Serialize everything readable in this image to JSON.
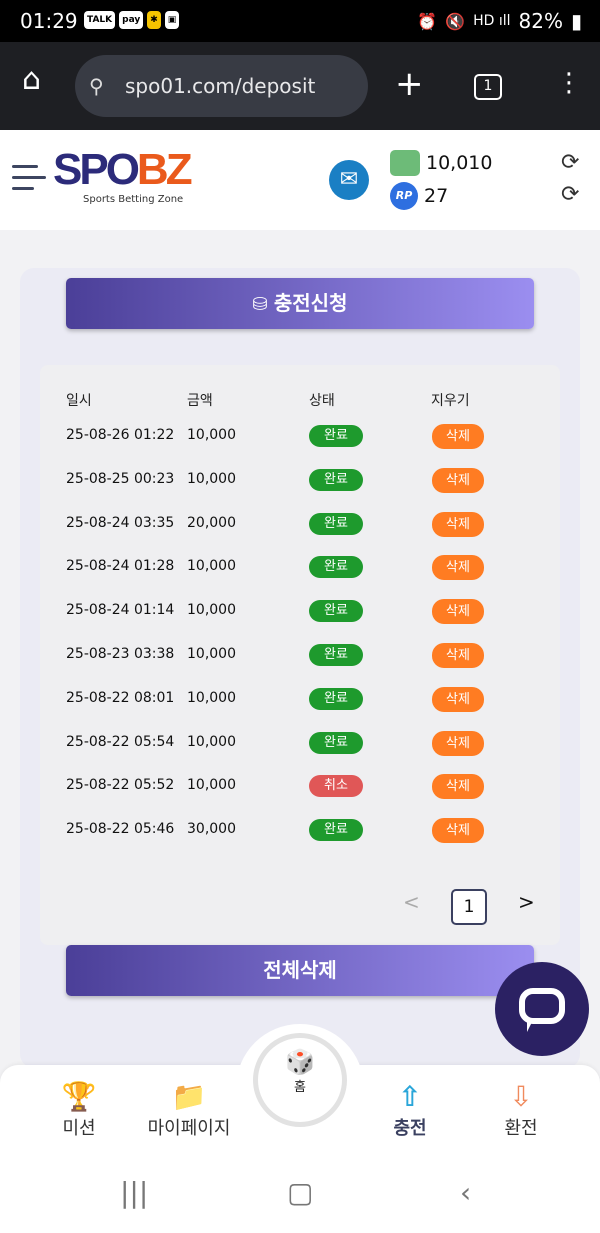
{
  "status_bar": {
    "time": "01:29",
    "notif_icons": [
      "TALK",
      "pay",
      "✱",
      "img"
    ],
    "battery": "82%"
  },
  "browser": {
    "url": "spo01.com/deposit",
    "tab_count": "1"
  },
  "header": {
    "logo_main_a": "SPO",
    "logo_main_b": "BZ",
    "logo_sub": "Sports Betting Zone",
    "money": "10,010",
    "rp_label": "RP",
    "rp": "27"
  },
  "deposit": {
    "request_button": "충전신청",
    "columns": [
      "일시",
      "금액",
      "상태",
      "지우기"
    ],
    "rows": [
      {
        "date": "25-08-26 01:22",
        "amount": "10,000",
        "status": "완료",
        "status_type": "done",
        "delete": "삭제"
      },
      {
        "date": "25-08-25 00:23",
        "amount": "10,000",
        "status": "완료",
        "status_type": "done",
        "delete": "삭제"
      },
      {
        "date": "25-08-24 03:35",
        "amount": "20,000",
        "status": "완료",
        "status_type": "done",
        "delete": "삭제"
      },
      {
        "date": "25-08-24 01:28",
        "amount": "10,000",
        "status": "완료",
        "status_type": "done",
        "delete": "삭제"
      },
      {
        "date": "25-08-24 01:14",
        "amount": "10,000",
        "status": "완료",
        "status_type": "done",
        "delete": "삭제"
      },
      {
        "date": "25-08-23 03:38",
        "amount": "10,000",
        "status": "완료",
        "status_type": "done",
        "delete": "삭제"
      },
      {
        "date": "25-08-22 08:01",
        "amount": "10,000",
        "status": "완료",
        "status_type": "done",
        "delete": "삭제"
      },
      {
        "date": "25-08-22 05:54",
        "amount": "10,000",
        "status": "완료",
        "status_type": "done",
        "delete": "삭제"
      },
      {
        "date": "25-08-22 05:52",
        "amount": "10,000",
        "status": "취소",
        "status_type": "cancel",
        "delete": "삭제"
      },
      {
        "date": "25-08-22 05:46",
        "amount": "30,000",
        "status": "완료",
        "status_type": "done",
        "delete": "삭제"
      }
    ],
    "pagination": {
      "prev": "<",
      "current": "1",
      "next": ">"
    },
    "delete_all_button": "전체삭제"
  },
  "bottom_nav": {
    "mission": "미션",
    "mypage": "마이페이지",
    "home": "홈",
    "deposit": "충전",
    "withdraw": "환전"
  },
  "colors": {
    "done": "#1e9a2d",
    "cancel": "#e05757",
    "delete": "#ff7c22",
    "accent": "#4b3f98"
  }
}
